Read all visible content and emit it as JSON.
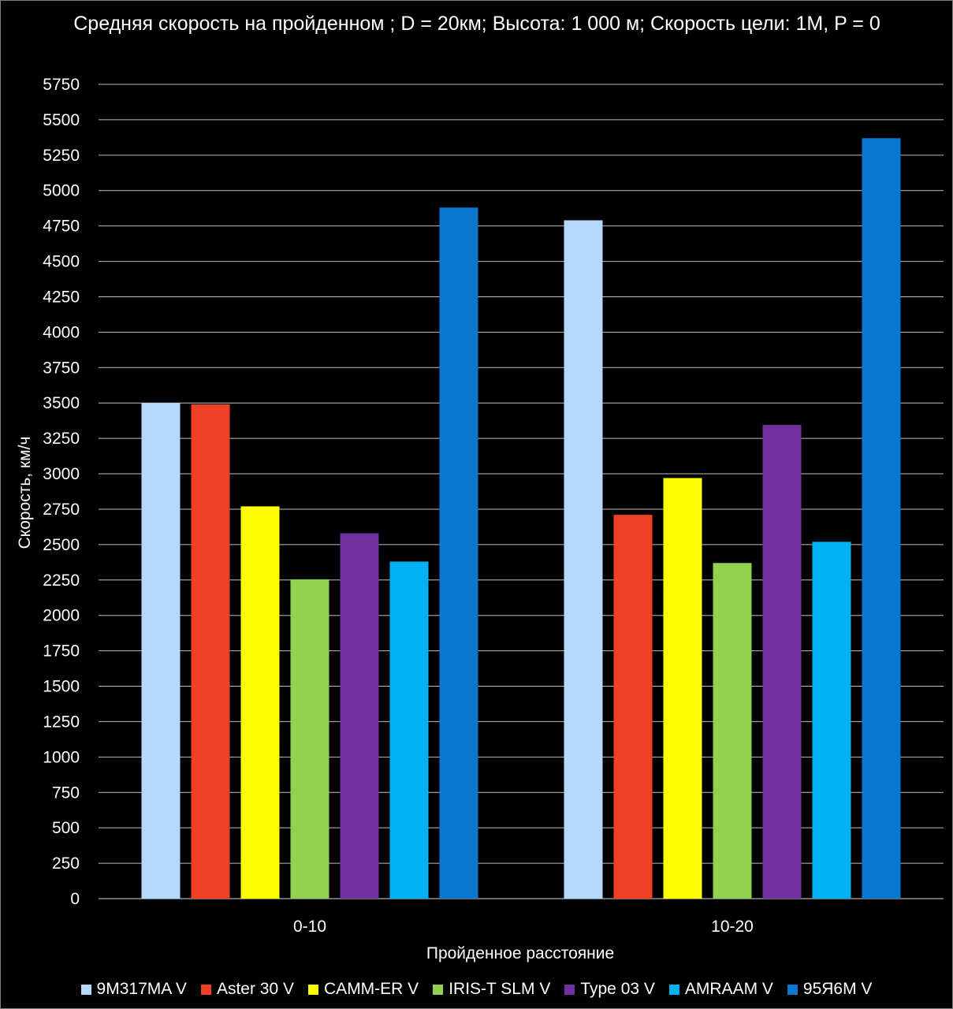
{
  "chart_data": {
    "type": "bar",
    "title": "Средняя скорость на пройденном ; D = 20км; Высота: 1 000 м; Скорость цели: 1М,  P = 0",
    "xlabel": "Пройденное расстояние",
    "ylabel": "Скорость, км/ч",
    "ylim": [
      0,
      5750
    ],
    "ytick_step": 250,
    "grid": true,
    "legend_position": "bottom",
    "categories": [
      "0-10",
      "10-20"
    ],
    "series": [
      {
        "name": "9M317MA V",
        "color": "#b4d9fb",
        "values": [
          3500,
          4790
        ]
      },
      {
        "name": "Aster 30 V",
        "color": "#f04124",
        "values": [
          3490,
          2710
        ]
      },
      {
        "name": "CAMM-ER V",
        "color": "#ffff00",
        "values": [
          2770,
          2970
        ]
      },
      {
        "name": "IRIS-T SLM V",
        "color": "#92d050",
        "values": [
          2255,
          2370
        ]
      },
      {
        "name": "Type 03 V",
        "color": "#7030a0",
        "values": [
          2580,
          3345
        ]
      },
      {
        "name": "AMRAAM V",
        "color": "#00b0f0",
        "values": [
          2380,
          2520
        ]
      },
      {
        "name": "95Я6М V",
        "color": "#0b78cf",
        "values": [
          4880,
          5370
        ]
      }
    ]
  }
}
